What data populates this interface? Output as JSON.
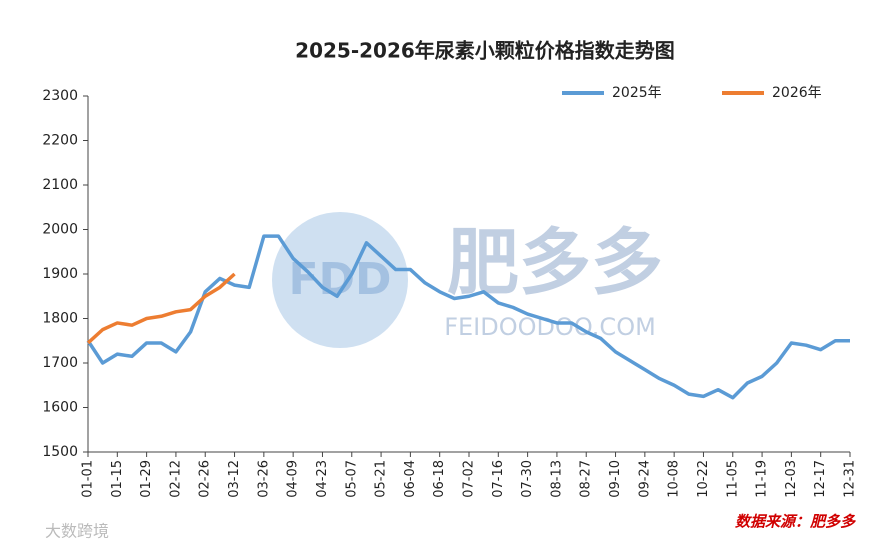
{
  "chart_data": {
    "type": "line",
    "title": "2025-2026年尿素小颗粒价格指数走势图",
    "categories": [
      "01-01",
      null,
      "01-15",
      null,
      "01-29",
      null,
      "02-12",
      null,
      "02-26",
      null,
      "03-12",
      null,
      "03-26",
      null,
      "04-09",
      null,
      "04-23",
      null,
      "05-07",
      null,
      "05-21",
      null,
      "06-04",
      null,
      "06-18",
      null,
      "07-02",
      null,
      "07-16",
      null,
      "07-30",
      null,
      "08-13",
      null,
      "08-27",
      null,
      "09-10",
      null,
      "09-24",
      null,
      "10-08",
      null,
      "10-22",
      null,
      "11-05",
      null,
      "11-19",
      null,
      "12-03",
      null,
      "12-17",
      null,
      "12-31"
    ],
    "series": [
      {
        "name": "2025年",
        "color": "#5b9bd5",
        "values": [
          1750,
          1700,
          1720,
          1715,
          1745,
          1745,
          1725,
          1770,
          1860,
          1890,
          1875,
          1870,
          1985,
          1985,
          1935,
          1905,
          1870,
          1850,
          1900,
          1970,
          1940,
          1910,
          1910,
          1880,
          1860,
          1845,
          1850,
          1860,
          1835,
          1825,
          1810,
          1800,
          1790,
          1790,
          1770,
          1755,
          1725,
          1705,
          1685,
          1665,
          1650,
          1630,
          1625,
          1640,
          1622,
          1655,
          1670,
          1700,
          1745,
          1740,
          1730,
          1750,
          1750
        ]
      },
      {
        "name": "2026年",
        "color": "#ed7d31",
        "values": [
          1745,
          1775,
          1790,
          1785,
          1800,
          1805,
          1815,
          1820,
          1850,
          1870,
          1900,
          null,
          null,
          null,
          null,
          null,
          null,
          null,
          null,
          null,
          null,
          null,
          null,
          null,
          null,
          null,
          null,
          null,
          null,
          null,
          null,
          null,
          null,
          null,
          null,
          null,
          null,
          null,
          null,
          null,
          null,
          null,
          null,
          null,
          null,
          null,
          null,
          null,
          null,
          null,
          null,
          null,
          null
        ]
      }
    ],
    "ylim": [
      1500,
      2300
    ],
    "yticks": [
      1500,
      1600,
      1700,
      1800,
      1900,
      2000,
      2100,
      2200,
      2300
    ],
    "grid": false,
    "legend": "top-right",
    "source": "数据来源：肥多多",
    "watermark": {
      "brand": "肥多多",
      "logo": "FDD",
      "url": "FEIDOODOO.COM",
      "corner": "大数跨境"
    }
  }
}
